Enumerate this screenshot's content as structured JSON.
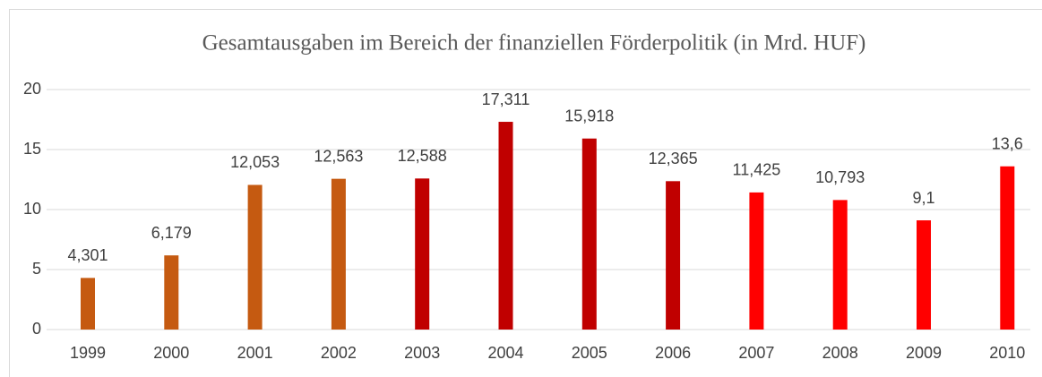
{
  "chart_data": {
    "type": "bar",
    "title": "Gesamtausgaben im Bereich der finanziellen Förderpolitik (in Mrd. HUF)",
    "categories": [
      "1999",
      "2000",
      "2001",
      "2002",
      "2003",
      "2004",
      "2005",
      "2006",
      "2007",
      "2008",
      "2009",
      "2010"
    ],
    "values": [
      4.301,
      6.179,
      12.053,
      12.563,
      12.588,
      17.311,
      15.918,
      12.365,
      11.425,
      10.793,
      9.1,
      13.6
    ],
    "value_labels": [
      "4,301",
      "6,179",
      "12,053",
      "12,563",
      "12,588",
      "17,311",
      "15,918",
      "12,365",
      "11,425",
      "10,793",
      "9,1",
      "13,6"
    ],
    "colors": [
      "#c55a11",
      "#c55a11",
      "#c55a11",
      "#c55a11",
      "#c00000",
      "#c00000",
      "#c00000",
      "#c00000",
      "#ff0000",
      "#ff0000",
      "#ff0000",
      "#ff0000"
    ],
    "ylim": [
      0,
      20
    ],
    "yticks": [
      0,
      5,
      10,
      15,
      20
    ],
    "grid": true
  }
}
